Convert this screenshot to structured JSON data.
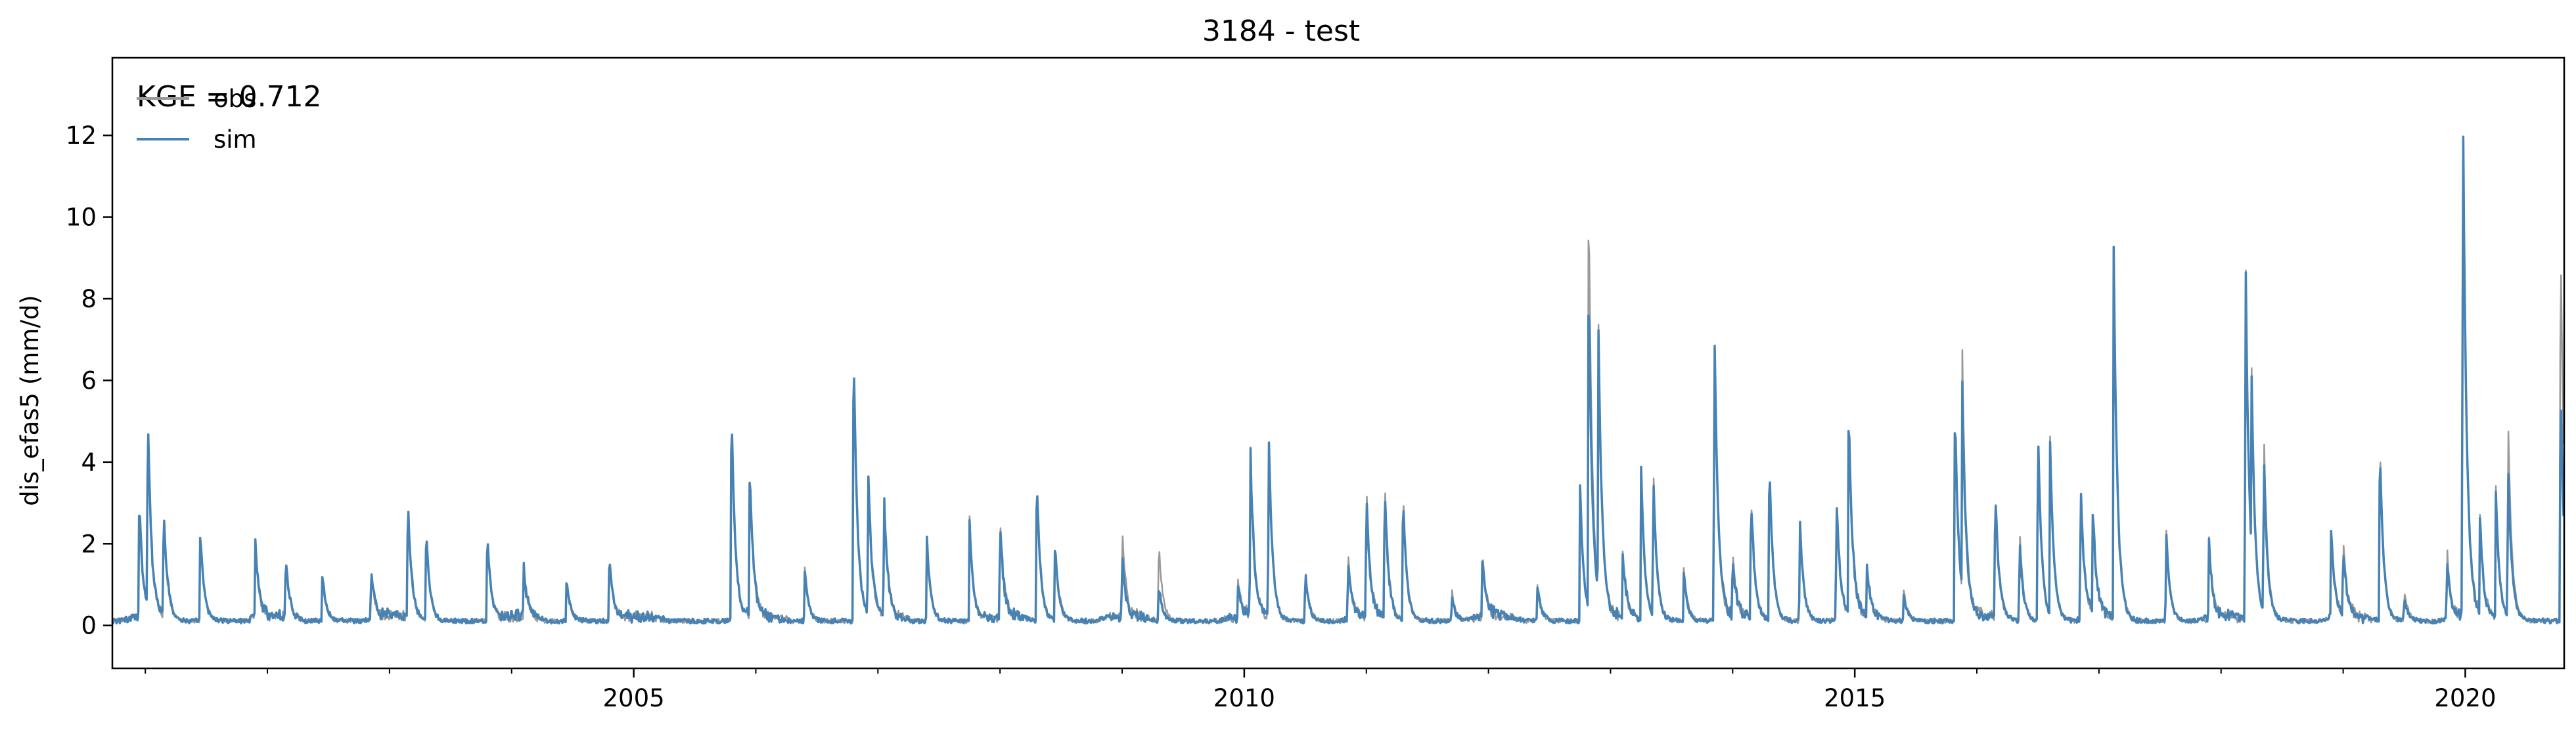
{
  "chart_data": {
    "type": "line",
    "title": "3184 - test",
    "xlabel": "",
    "ylabel": "dis_efas5 (mm/d)",
    "x_tick_labels": [
      "2005",
      "2010",
      "2015",
      "2020"
    ],
    "x_ticks_years": [
      2005,
      2010,
      2015,
      2020
    ],
    "xlim_years": [
      2000.73,
      2020.81
    ],
    "ylim": [
      -1.05,
      13.9
    ],
    "y_ticks": [
      0,
      2,
      4,
      6,
      8,
      10,
      12
    ],
    "grid": false,
    "legend_position": "top-left",
    "annotation": "KGE = 0.712",
    "series": [
      {
        "name": "obs",
        "color": "#999999",
        "peaks": [
          [
            2000.95,
            2.6
          ],
          [
            2001.02,
            4.5
          ],
          [
            2001.15,
            2.4
          ],
          [
            2001.45,
            2.3
          ],
          [
            2001.9,
            1.9
          ],
          [
            2002.15,
            1.4
          ],
          [
            2002.45,
            1.1
          ],
          [
            2002.85,
            1.2
          ],
          [
            2003.15,
            2.8
          ],
          [
            2003.3,
            2.2
          ],
          [
            2003.8,
            2.1
          ],
          [
            2004.1,
            1.3
          ],
          [
            2004.45,
            1.1
          ],
          [
            2004.8,
            1.6
          ],
          [
            2005.8,
            5.3
          ],
          [
            2005.95,
            3.6
          ],
          [
            2006.4,
            1.4
          ],
          [
            2006.8,
            7.0
          ],
          [
            2006.92,
            3.5
          ],
          [
            2007.05,
            3.1
          ],
          [
            2007.4,
            2.0
          ],
          [
            2007.75,
            2.6
          ],
          [
            2008.0,
            2.5
          ],
          [
            2008.3,
            3.5
          ],
          [
            2008.45,
            1.9
          ],
          [
            2009.0,
            2.1
          ],
          [
            2009.3,
            2.0
          ],
          [
            2009.95,
            1.0
          ],
          [
            2010.05,
            4.2
          ],
          [
            2010.2,
            4.6
          ],
          [
            2010.5,
            1.3
          ],
          [
            2010.85,
            1.6
          ],
          [
            2011.0,
            3.3
          ],
          [
            2011.15,
            3.6
          ],
          [
            2011.3,
            3.3
          ],
          [
            2011.7,
            0.8
          ],
          [
            2011.95,
            1.6
          ],
          [
            2012.4,
            0.9
          ],
          [
            2012.75,
            3.4
          ],
          [
            2012.82,
            10.6
          ],
          [
            2012.9,
            6.8
          ],
          [
            2013.1,
            1.5
          ],
          [
            2013.25,
            3.8
          ],
          [
            2013.35,
            3.8
          ],
          [
            2013.6,
            1.3
          ],
          [
            2013.85,
            7.4
          ],
          [
            2014.0,
            1.5
          ],
          [
            2014.15,
            3.1
          ],
          [
            2014.3,
            4.0
          ],
          [
            2014.55,
            2.6
          ],
          [
            2014.85,
            3.1
          ],
          [
            2014.95,
            5.0
          ],
          [
            2015.1,
            1.3
          ],
          [
            2015.4,
            0.8
          ],
          [
            2015.82,
            5.4
          ],
          [
            2015.88,
            6.0
          ],
          [
            2016.15,
            3.3
          ],
          [
            2016.35,
            2.3
          ],
          [
            2016.5,
            4.8
          ],
          [
            2016.6,
            4.5
          ],
          [
            2016.85,
            3.3
          ],
          [
            2016.95,
            2.6
          ],
          [
            2017.12,
            9.2
          ],
          [
            2017.55,
            2.3
          ],
          [
            2017.9,
            2.0
          ],
          [
            2018.2,
            9.2
          ],
          [
            2018.25,
            4.5
          ],
          [
            2018.35,
            4.6
          ],
          [
            2018.9,
            2.3
          ],
          [
            2019.0,
            1.8
          ],
          [
            2019.3,
            4.7
          ],
          [
            2019.5,
            0.8
          ],
          [
            2019.85,
            1.8
          ],
          [
            2019.98,
            13.2
          ],
          [
            2020.12,
            2.5
          ],
          [
            2020.25,
            3.3
          ],
          [
            2020.35,
            5.0
          ],
          [
            2020.78,
            10.0
          ]
        ]
      },
      {
        "name": "sim",
        "color": "#4682B4",
        "peaks": [
          [
            2000.95,
            2.9
          ],
          [
            2001.02,
            4.8
          ],
          [
            2001.15,
            2.6
          ],
          [
            2001.45,
            2.3
          ],
          [
            2001.9,
            2.0
          ],
          [
            2002.15,
            1.5
          ],
          [
            2002.45,
            1.2
          ],
          [
            2002.85,
            1.3
          ],
          [
            2003.15,
            3.0
          ],
          [
            2003.3,
            2.3
          ],
          [
            2003.8,
            2.2
          ],
          [
            2004.1,
            1.2
          ],
          [
            2004.45,
            1.1
          ],
          [
            2004.8,
            1.7
          ],
          [
            2005.8,
            5.5
          ],
          [
            2005.95,
            3.7
          ],
          [
            2006.4,
            1.3
          ],
          [
            2006.8,
            7.1
          ],
          [
            2006.92,
            3.6
          ],
          [
            2007.05,
            2.9
          ],
          [
            2007.4,
            2.1
          ],
          [
            2007.75,
            2.5
          ],
          [
            2008.0,
            2.3
          ],
          [
            2008.3,
            3.7
          ],
          [
            2008.45,
            2.0
          ],
          [
            2009.0,
            1.5
          ],
          [
            2009.3,
            0.9
          ],
          [
            2009.95,
            0.8
          ],
          [
            2010.05,
            4.2
          ],
          [
            2010.2,
            4.7
          ],
          [
            2010.5,
            1.2
          ],
          [
            2010.85,
            1.5
          ],
          [
            2011.0,
            3.0
          ],
          [
            2011.15,
            3.3
          ],
          [
            2011.3,
            3.2
          ],
          [
            2011.7,
            0.6
          ],
          [
            2011.95,
            1.5
          ],
          [
            2012.4,
            0.9
          ],
          [
            2012.75,
            3.4
          ],
          [
            2012.82,
            8.4
          ],
          [
            2012.9,
            6.8
          ],
          [
            2013.1,
            1.5
          ],
          [
            2013.25,
            3.8
          ],
          [
            2013.35,
            3.5
          ],
          [
            2013.6,
            1.2
          ],
          [
            2013.85,
            7.5
          ],
          [
            2014.0,
            1.4
          ],
          [
            2014.15,
            3.1
          ],
          [
            2014.3,
            4.0
          ],
          [
            2014.55,
            2.6
          ],
          [
            2014.85,
            3.1
          ],
          [
            2014.95,
            5.2
          ],
          [
            2015.1,
            1.2
          ],
          [
            2015.4,
            0.7
          ],
          [
            2015.82,
            5.5
          ],
          [
            2015.88,
            5.2
          ],
          [
            2016.15,
            3.3
          ],
          [
            2016.35,
            2.0
          ],
          [
            2016.5,
            4.8
          ],
          [
            2016.6,
            4.3
          ],
          [
            2016.85,
            3.4
          ],
          [
            2016.95,
            2.6
          ],
          [
            2017.12,
            9.2
          ],
          [
            2017.55,
            2.3
          ],
          [
            2017.9,
            1.9
          ],
          [
            2018.2,
            9.2
          ],
          [
            2018.25,
            4.3
          ],
          [
            2018.35,
            4.0
          ],
          [
            2018.9,
            2.3
          ],
          [
            2019.0,
            1.7
          ],
          [
            2019.3,
            4.5
          ],
          [
            2019.5,
            0.6
          ],
          [
            2019.85,
            1.5
          ],
          [
            2019.98,
            13.2
          ],
          [
            2020.12,
            2.3
          ],
          [
            2020.25,
            3.2
          ],
          [
            2020.35,
            3.9
          ],
          [
            2020.78,
            6.0
          ]
        ]
      }
    ]
  }
}
